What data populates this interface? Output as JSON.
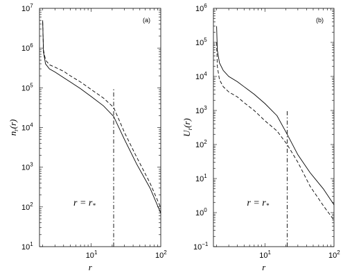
{
  "chart_data": [
    {
      "type": "line",
      "panel_label": "(a)",
      "xlabel": "r",
      "ylabel": "n_r(r)",
      "xscale": "log",
      "yscale": "log",
      "xlim": [
        1.8,
        100
      ],
      "ylim": [
        10,
        10000000
      ],
      "grid": false,
      "annotation": {
        "text": "r = r_*",
        "x": 21,
        "vline_y": [
          10,
          100000
        ]
      },
      "series": [
        {
          "style": "solid",
          "x": [
            2.0,
            2.05,
            2.2,
            2.5,
            3,
            4,
            5,
            7,
            10,
            15,
            21,
            30,
            45,
            70,
            100
          ],
          "y": [
            5000000,
            800000,
            400000,
            300000,
            250000,
            180000,
            140000,
            95000,
            60000,
            35000,
            19000,
            5000,
            1200,
            300,
            70
          ]
        },
        {
          "style": "dashed",
          "x": [
            2.0,
            2.05,
            2.2,
            2.5,
            3,
            4,
            5,
            7,
            10,
            15,
            21,
            30,
            45,
            70,
            100
          ],
          "y": [
            4500000,
            900000,
            500000,
            380000,
            330000,
            260000,
            200000,
            140000,
            90000,
            55000,
            32000,
            7500,
            1800,
            400,
            95
          ]
        }
      ],
      "xticks": [
        {
          "base": "10",
          "exp": "1",
          "value": 10
        },
        {
          "base": "10",
          "exp": "2",
          "value": 100
        }
      ],
      "yticks": [
        {
          "base": "10",
          "exp": "1",
          "value": 10
        },
        {
          "base": "10",
          "exp": "2",
          "value": 100
        },
        {
          "base": "10",
          "exp": "3",
          "value": 1000
        },
        {
          "base": "10",
          "exp": "4",
          "value": 10000
        },
        {
          "base": "10",
          "exp": "5",
          "value": 100000
        },
        {
          "base": "10",
          "exp": "6",
          "value": 1000000
        },
        {
          "base": "10",
          "exp": "7",
          "value": 10000000
        }
      ]
    },
    {
      "type": "line",
      "panel_label": "(b)",
      "xlabel": "r",
      "ylabel": "U_r(r)",
      "xscale": "log",
      "yscale": "log",
      "xlim": [
        1.8,
        100
      ],
      "ylim": [
        0.1,
        1000000
      ],
      "grid": false,
      "annotation": {
        "text": "r = r_*",
        "x": 21,
        "vline_y": [
          0.1,
          1000
        ]
      },
      "series": [
        {
          "style": "solid",
          "x": [
            2.0,
            2.05,
            2.2,
            2.5,
            3,
            4,
            5,
            7,
            10,
            15,
            21,
            30,
            45,
            70,
            100
          ],
          "y": [
            300000,
            60000,
            25000,
            15000,
            10000,
            7000,
            5000,
            3000,
            1600,
            700,
            200,
            50,
            15,
            5,
            1.7
          ]
        },
        {
          "style": "dashed",
          "x": [
            2.0,
            2.05,
            2.2,
            2.5,
            3,
            4,
            5,
            7,
            10,
            15,
            21,
            30,
            45,
            70,
            100
          ],
          "y": [
            100000,
            20000,
            8000,
            5000,
            3500,
            2500,
            1700,
            1000,
            500,
            250,
            100,
            30,
            6,
            1.6,
            0.6
          ]
        }
      ],
      "xticks": [
        {
          "base": "10",
          "exp": "1",
          "value": 10
        },
        {
          "base": "10",
          "exp": "2",
          "value": 100
        }
      ],
      "yticks": [
        {
          "base": "10",
          "exp": "−1",
          "value": 0.1
        },
        {
          "base": "10",
          "exp": "0",
          "value": 1
        },
        {
          "base": "10",
          "exp": "1",
          "value": 10
        },
        {
          "base": "10",
          "exp": "2",
          "value": 100
        },
        {
          "base": "10",
          "exp": "3",
          "value": 1000
        },
        {
          "base": "10",
          "exp": "4",
          "value": 10000
        },
        {
          "base": "10",
          "exp": "5",
          "value": 100000
        },
        {
          "base": "10",
          "exp": "6",
          "value": 1000000
        }
      ]
    }
  ]
}
